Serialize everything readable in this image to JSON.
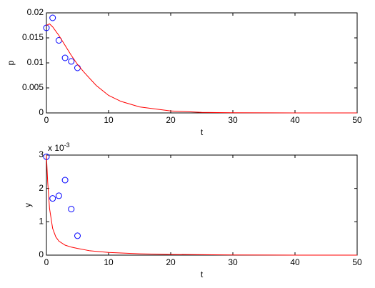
{
  "chart_data": [
    {
      "type": "scatter",
      "xlabel": "t",
      "ylabel": "p",
      "xlim": [
        0,
        50
      ],
      "xticks": [
        0,
        10,
        20,
        30,
        40,
        50
      ],
      "ylim": [
        0,
        0.02
      ],
      "yticks": [
        0,
        0.005,
        0.01,
        0.015,
        0.02
      ],
      "series": [
        {
          "color": "#0000ff",
          "marker": "circle",
          "x": [
            0,
            1,
            2,
            3,
            4,
            5
          ],
          "values": [
            0.017,
            0.019,
            0.0145,
            0.011,
            0.0103,
            0.009
          ]
        },
        {
          "color": "#ff0000",
          "marker": "line",
          "x": [
            0,
            0.5,
            1,
            2,
            3,
            4,
            5,
            6,
            8,
            10,
            12,
            15,
            20,
            25,
            30,
            40,
            50
          ],
          "values": [
            0.0175,
            0.0178,
            0.0172,
            0.0155,
            0.0135,
            0.0115,
            0.0097,
            0.0082,
            0.0055,
            0.0035,
            0.0023,
            0.0012,
            0.0004,
            0.0001,
            3e-05,
            0,
            0
          ]
        }
      ]
    },
    {
      "type": "scatter",
      "xlabel": "t",
      "ylabel": "y",
      "yscale_label": "x 10",
      "yscale_exponent": "-3",
      "xlim": [
        0,
        50
      ],
      "xticks": [
        0,
        10,
        20,
        30,
        40,
        50
      ],
      "ylim": [
        0,
        3
      ],
      "yticks": [
        0,
        1,
        2,
        3
      ],
      "series": [
        {
          "color": "#0000ff",
          "marker": "circle",
          "x": [
            0,
            1,
            2,
            3,
            4,
            5
          ],
          "values": [
            2.95,
            1.7,
            1.78,
            2.25,
            1.38,
            0.58
          ]
        },
        {
          "color": "#ff0000",
          "marker": "line",
          "x": [
            0,
            0.2,
            0.5,
            1,
            1.5,
            2,
            3,
            4,
            5,
            7,
            10,
            15,
            20,
            30,
            40,
            50
          ],
          "values": [
            3,
            2.2,
            1.4,
            0.8,
            0.55,
            0.42,
            0.3,
            0.24,
            0.2,
            0.13,
            0.08,
            0.04,
            0.02,
            0.005,
            0.001,
            0
          ]
        }
      ]
    }
  ]
}
